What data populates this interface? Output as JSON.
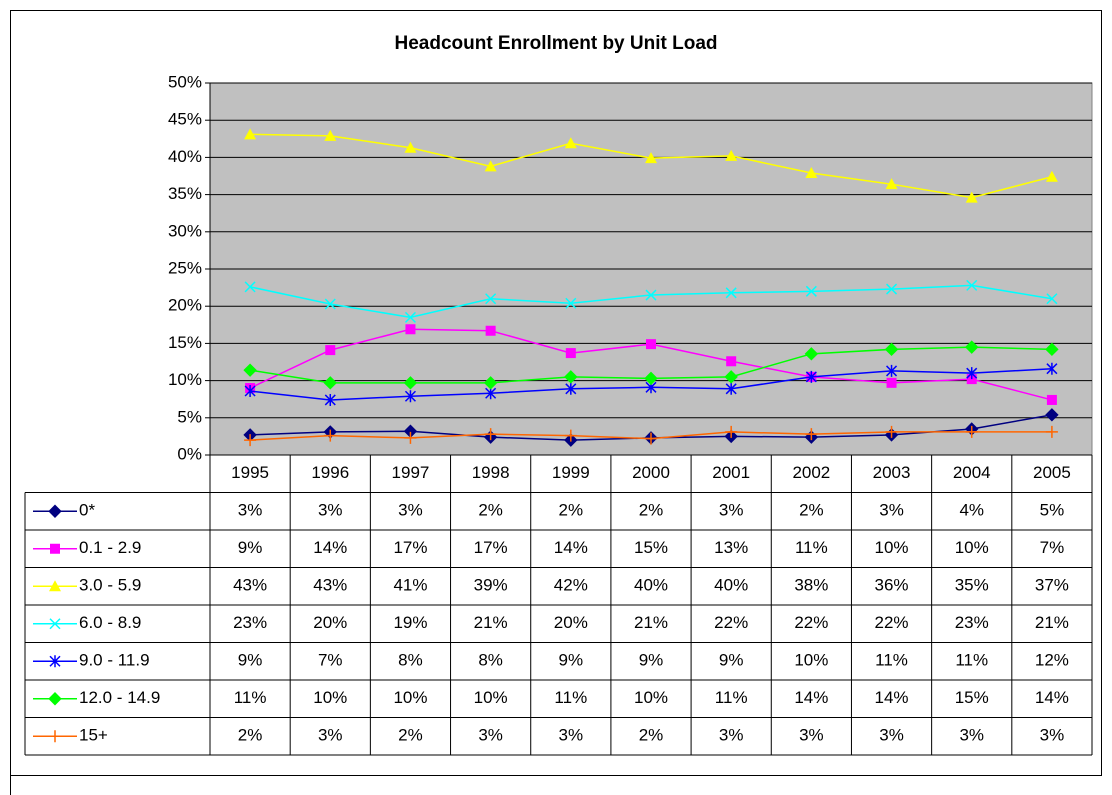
{
  "chart_data": {
    "type": "line",
    "title": "Headcount Enrollment by Unit Load",
    "categories": [
      "1995",
      "1996",
      "1997",
      "1998",
      "1999",
      "2000",
      "2001",
      "2002",
      "2003",
      "2004",
      "2005"
    ],
    "ylim": [
      0,
      50
    ],
    "yticks": [
      {
        "value": 0,
        "label": "0%"
      },
      {
        "value": 5,
        "label": "5%"
      },
      {
        "value": 10,
        "label": "10%"
      },
      {
        "value": 15,
        "label": "15%"
      },
      {
        "value": 20,
        "label": "20%"
      },
      {
        "value": 25,
        "label": "25%"
      },
      {
        "value": 30,
        "label": "30%"
      },
      {
        "value": 35,
        "label": "35%"
      },
      {
        "value": 40,
        "label": "40%"
      },
      {
        "value": 45,
        "label": "45%"
      },
      {
        "value": 50,
        "label": "50%"
      }
    ],
    "grid": true,
    "plot_background": "#c0c0c0",
    "series": [
      {
        "name": "0*",
        "color": "#000080",
        "marker": "diamond",
        "values": [
          2.7,
          3.1,
          3.2,
          2.4,
          2.0,
          2.3,
          2.5,
          2.4,
          2.7,
          3.5,
          5.4
        ],
        "value_labels": [
          "3%",
          "3%",
          "3%",
          "2%",
          "2%",
          "2%",
          "3%",
          "2%",
          "3%",
          "4%",
          "5%"
        ]
      },
      {
        "name": "0.1 - 2.9",
        "color": "#ff00ff",
        "marker": "square",
        "values": [
          9.0,
          14.1,
          16.9,
          16.7,
          13.7,
          14.9,
          12.6,
          10.5,
          9.7,
          10.2,
          7.4
        ],
        "value_labels": [
          "9%",
          "14%",
          "17%",
          "17%",
          "14%",
          "15%",
          "13%",
          "11%",
          "10%",
          "10%",
          "7%"
        ]
      },
      {
        "name": "3.0 - 5.9",
        "color": "#ffff00",
        "marker": "triangle",
        "values": [
          43.1,
          42.9,
          41.3,
          38.8,
          41.9,
          39.9,
          40.2,
          37.9,
          36.4,
          34.6,
          37.4
        ],
        "value_labels": [
          "43%",
          "43%",
          "41%",
          "39%",
          "42%",
          "40%",
          "40%",
          "38%",
          "36%",
          "35%",
          "37%"
        ]
      },
      {
        "name": "6.0 - 8.9",
        "color": "#00ffff",
        "marker": "x",
        "values": [
          22.6,
          20.3,
          18.5,
          21.0,
          20.4,
          21.5,
          21.8,
          22.0,
          22.3,
          22.8,
          21.0
        ],
        "value_labels": [
          "23%",
          "20%",
          "19%",
          "21%",
          "20%",
          "21%",
          "22%",
          "22%",
          "22%",
          "23%",
          "21%"
        ]
      },
      {
        "name": "9.0 - 11.9",
        "color": "#0000ff",
        "marker": "star",
        "values": [
          8.6,
          7.4,
          7.9,
          8.3,
          8.9,
          9.1,
          8.9,
          10.5,
          11.3,
          11.0,
          11.6
        ],
        "value_labels": [
          "9%",
          "7%",
          "8%",
          "8%",
          "9%",
          "9%",
          "9%",
          "10%",
          "11%",
          "11%",
          "12%"
        ]
      },
      {
        "name": "12.0 - 14.9",
        "color": "#00ff00",
        "marker": "diamond",
        "values": [
          11.4,
          9.7,
          9.7,
          9.7,
          10.5,
          10.3,
          10.5,
          13.6,
          14.2,
          14.5,
          14.2
        ],
        "value_labels": [
          "11%",
          "10%",
          "10%",
          "10%",
          "11%",
          "10%",
          "11%",
          "14%",
          "14%",
          "15%",
          "14%"
        ]
      },
      {
        "name": "15+",
        "color": "#ff6600",
        "marker": "plus",
        "values": [
          2.0,
          2.6,
          2.3,
          2.8,
          2.6,
          2.2,
          3.1,
          2.8,
          3.1,
          3.1,
          3.1
        ],
        "value_labels": [
          "2%",
          "3%",
          "2%",
          "3%",
          "3%",
          "2%",
          "3%",
          "3%",
          "3%",
          "3%",
          "3%"
        ]
      }
    ]
  }
}
